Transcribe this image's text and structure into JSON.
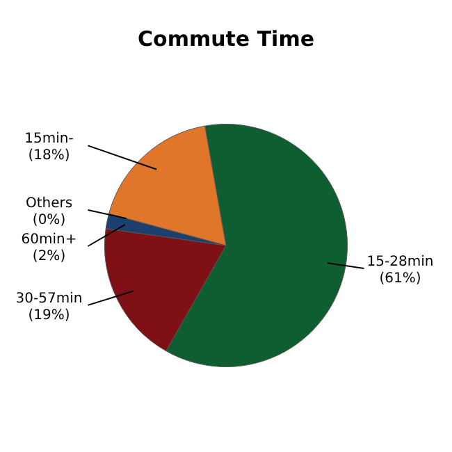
{
  "chart_data": {
    "type": "pie",
    "title": "Commute Time",
    "categories": [
      "15-28min",
      "30-57min",
      "60min+",
      "Others",
      "15min-"
    ],
    "values": [
      61,
      19,
      2,
      0,
      18
    ],
    "value_labels": [
      "(61%)",
      "(19%)",
      "(2%)",
      "(0%)",
      "(18%)"
    ],
    "colors": [
      "#0f5e32",
      "#7f1116",
      "#1c3f6e",
      "#4a7dbf",
      "#e0762a"
    ],
    "legend": false
  }
}
